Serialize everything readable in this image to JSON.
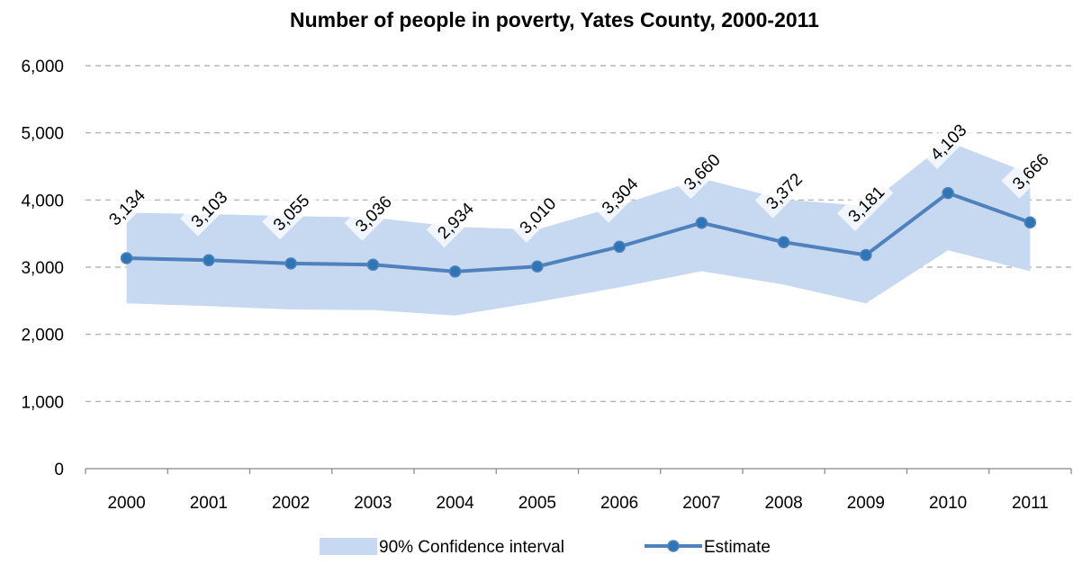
{
  "chart_data": {
    "type": "line",
    "title": "Number of people in poverty, Yates County, 2000-2011",
    "xlabel": "",
    "ylabel": "",
    "categories": [
      "2000",
      "2001",
      "2002",
      "2003",
      "2004",
      "2005",
      "2006",
      "2007",
      "2008",
      "2009",
      "2010",
      "2011"
    ],
    "y_tick_labels": [
      "0",
      "1,000",
      "2,000",
      "3,000",
      "4,000",
      "5,000",
      "6,000"
    ],
    "ylim": [
      0,
      6000
    ],
    "grid": "horizontal dashed",
    "legend_position": "bottom",
    "series": [
      {
        "name": "90% Confidence interval",
        "kind": "band",
        "lower": [
          2460,
          2420,
          2370,
          2360,
          2280,
          2480,
          2700,
          2940,
          2740,
          2460,
          3250,
          2940
        ],
        "upper": [
          3810,
          3790,
          3760,
          3740,
          3600,
          3560,
          3920,
          4320,
          4010,
          3910,
          4870,
          4390
        ],
        "color": "#c6d9f1"
      },
      {
        "name": "Estimate",
        "kind": "line",
        "values": [
          3134,
          3103,
          3055,
          3036,
          2934,
          3010,
          3304,
          3660,
          3372,
          3181,
          4103,
          3666
        ],
        "labels": [
          "3,134",
          "3,103",
          "3,055",
          "3,036",
          "2,934",
          "3,010",
          "3,304",
          "3,660",
          "3,372",
          "3,181",
          "4,103",
          "3,666"
        ],
        "color": "#4f81bd",
        "marker_color": "#2e75b6"
      }
    ]
  }
}
